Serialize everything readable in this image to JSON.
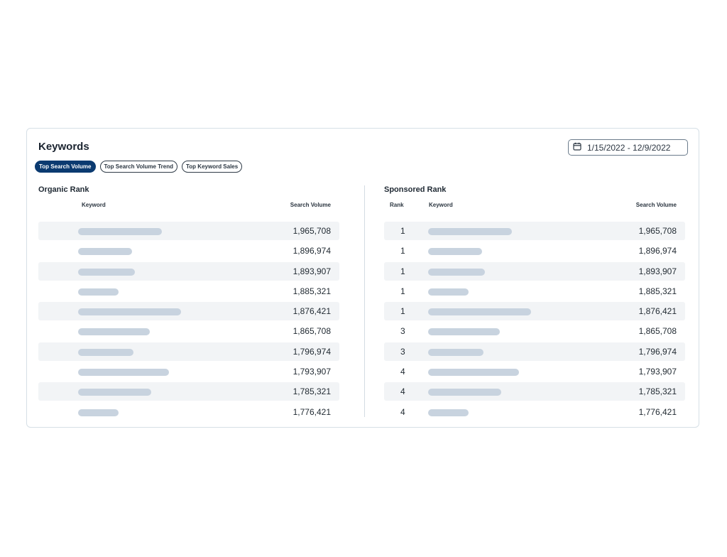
{
  "widget": {
    "title": "Keywords",
    "date_range": "1/15/2022 - 12/9/2022",
    "tabs": [
      {
        "label": "Top Search Volume",
        "active": true
      },
      {
        "label": "Top Search Volume Trend",
        "active": false
      },
      {
        "label": "Top Keyword Sales",
        "active": false
      }
    ]
  },
  "organic": {
    "title": "Organic Rank",
    "headers": {
      "keyword": "Keyword",
      "search_volume": "Search Volume"
    },
    "rows": [
      {
        "volume": "1,965,708",
        "keyword_placeholder_length": 0.56
      },
      {
        "volume": "1,896,974",
        "keyword_placeholder_length": 0.36
      },
      {
        "volume": "1,893,907",
        "keyword_placeholder_length": 0.38
      },
      {
        "volume": "1,885,321",
        "keyword_placeholder_length": 0.27
      },
      {
        "volume": "1,876,421",
        "keyword_placeholder_length": 0.69
      },
      {
        "volume": "1,865,708",
        "keyword_placeholder_length": 0.48
      },
      {
        "volume": "1,796,974",
        "keyword_placeholder_length": 0.37
      },
      {
        "volume": "1,793,907",
        "keyword_placeholder_length": 0.61
      },
      {
        "volume": "1,785,321",
        "keyword_placeholder_length": 0.49
      },
      {
        "volume": "1,776,421",
        "keyword_placeholder_length": 0.27
      }
    ]
  },
  "sponsored": {
    "title": "Sponsored Rank",
    "headers": {
      "rank": "Rank",
      "keyword": "Keyword",
      "search_volume": "Search Volume"
    },
    "rows": [
      {
        "rank": "1",
        "volume": "1,965,708",
        "keyword_placeholder_length": 0.56
      },
      {
        "rank": "1",
        "volume": "1,896,974",
        "keyword_placeholder_length": 0.36
      },
      {
        "rank": "1",
        "volume": "1,893,907",
        "keyword_placeholder_length": 0.38
      },
      {
        "rank": "1",
        "volume": "1,885,321",
        "keyword_placeholder_length": 0.27
      },
      {
        "rank": "1",
        "volume": "1,876,421",
        "keyword_placeholder_length": 0.69
      },
      {
        "rank": "3",
        "volume": "1,865,708",
        "keyword_placeholder_length": 0.48
      },
      {
        "rank": "3",
        "volume": "1,796,974",
        "keyword_placeholder_length": 0.37
      },
      {
        "rank": "4",
        "volume": "1,793,907",
        "keyword_placeholder_length": 0.61
      },
      {
        "rank": "4",
        "volume": "1,785,321",
        "keyword_placeholder_length": 0.49
      },
      {
        "rank": "4",
        "volume": "1,776,421",
        "keyword_placeholder_length": 0.27
      }
    ]
  },
  "colors": {
    "accent": "#0b3a70",
    "row_shade": "#f2f4f6",
    "placeholder_bar": "#c8d3df"
  },
  "icons": {
    "date": "calendar-icon"
  }
}
